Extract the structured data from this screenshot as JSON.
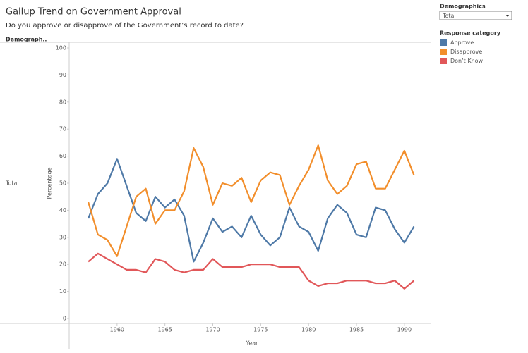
{
  "chart_data": {
    "type": "line",
    "title": "Gallup Trend on Government Approval",
    "subtitle": "Do you approve or disapprove of the Government’s record to date?",
    "row_header": "Demograph..",
    "row_label": "Total",
    "x_label": "Year",
    "y_label": "Percentage",
    "legend_title": "Response category",
    "x": [
      1957,
      1958,
      1959,
      1960,
      1961,
      1962,
      1963,
      1964,
      1965,
      1966,
      1967,
      1968,
      1969,
      1970,
      1971,
      1972,
      1973,
      1974,
      1975,
      1976,
      1977,
      1978,
      1979,
      1980,
      1981,
      1982,
      1983,
      1984,
      1985,
      1986,
      1987,
      1988,
      1989,
      1990,
      1991
    ],
    "series": [
      {
        "name": "Approve",
        "color": "#4e79a7",
        "values": [
          37,
          46,
          50,
          59,
          49,
          39,
          36,
          45,
          41,
          44,
          38,
          21,
          28,
          37,
          32,
          34,
          30,
          38,
          31,
          27,
          30,
          41,
          34,
          32,
          25,
          37,
          42,
          39,
          31,
          30,
          41,
          40,
          33,
          28,
          34
        ]
      },
      {
        "name": "Disapprove",
        "color": "#f28e2b",
        "values": [
          43,
          31,
          29,
          23,
          34,
          45,
          48,
          35,
          40,
          40,
          47,
          63,
          56,
          42,
          50,
          49,
          52,
          43,
          51,
          54,
          53,
          42,
          49,
          55,
          64,
          51,
          46,
          49,
          57,
          58,
          48,
          48,
          55,
          62,
          53
        ]
      },
      {
        "name": "Don’t Know",
        "color": "#e15759",
        "values": [
          21,
          24,
          22,
          20,
          18,
          18,
          17,
          22,
          21,
          18,
          17,
          18,
          18,
          22,
          19,
          19,
          19,
          20,
          20,
          20,
          19,
          19,
          19,
          14,
          12,
          13,
          13,
          14,
          14,
          14,
          13,
          13,
          14,
          11,
          14
        ]
      }
    ],
    "xlim": [
      1955,
      1992
    ],
    "ylim": [
      0,
      100
    ],
    "xticks": [
      1960,
      1965,
      1970,
      1975,
      1980,
      1985,
      1990
    ],
    "yticks": [
      0,
      10,
      20,
      30,
      40,
      50,
      60,
      70,
      80,
      90,
      100
    ],
    "grid": false
  },
  "filter": {
    "title": "Demographics",
    "value": "Total"
  }
}
